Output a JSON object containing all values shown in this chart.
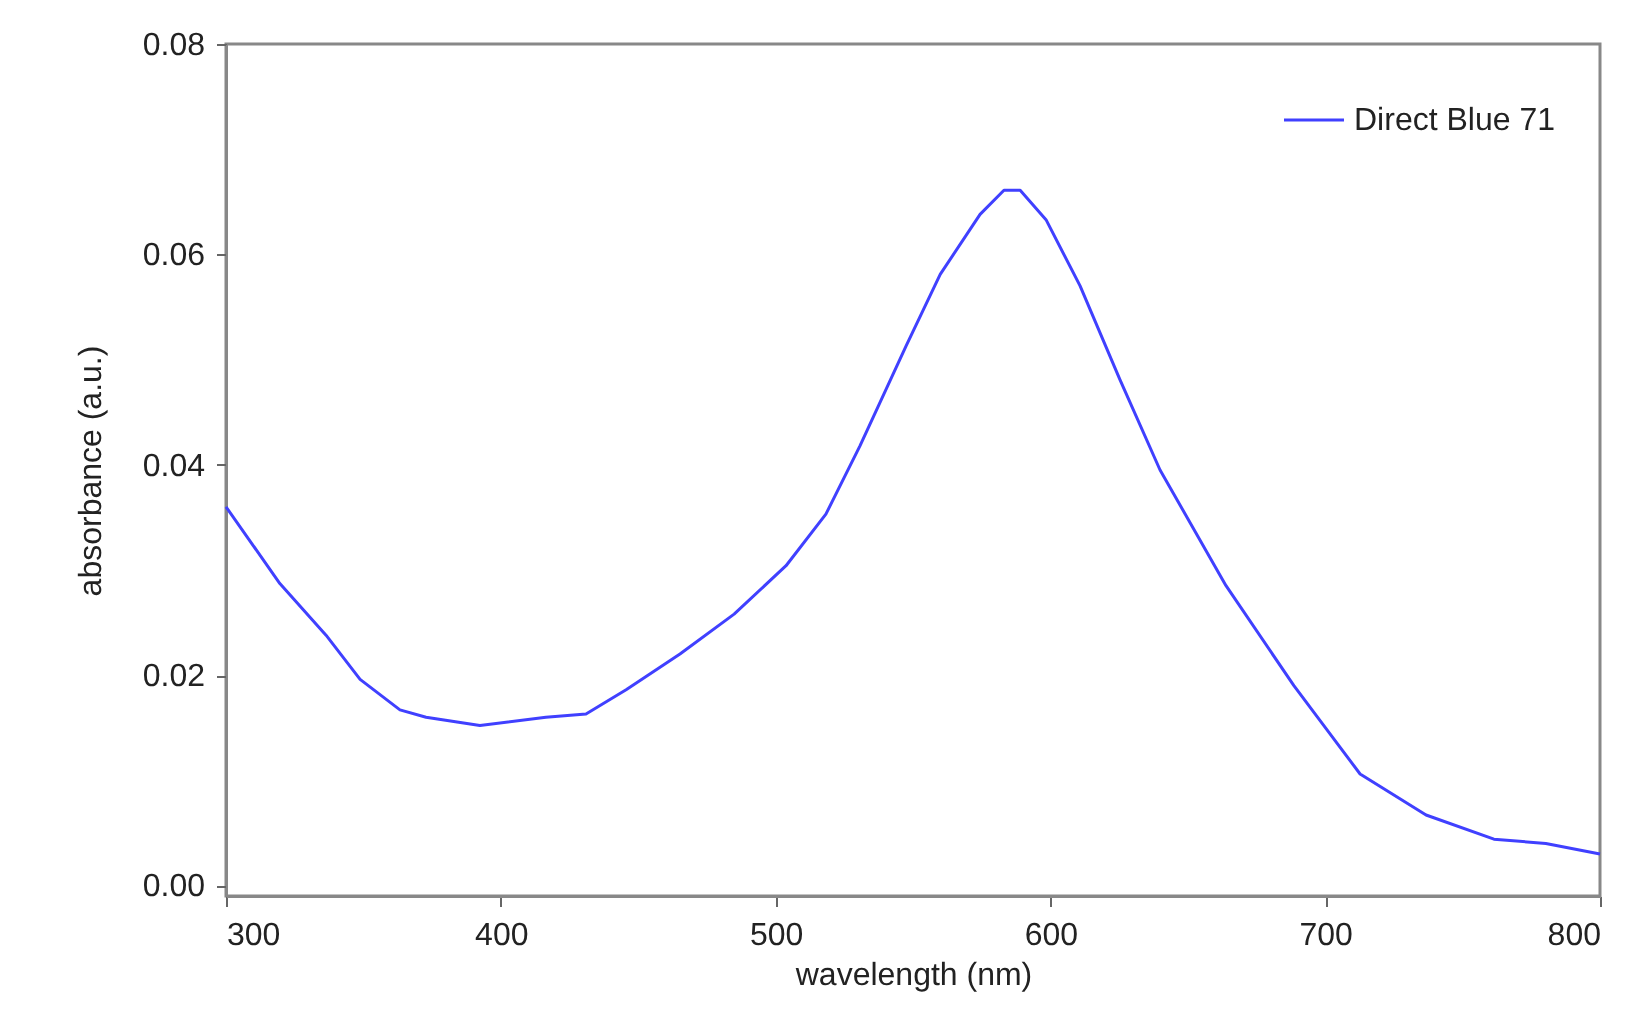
{
  "chart_data": {
    "type": "line",
    "xlabel": "wavelength (nm)",
    "ylabel": "absorbance (a.u.)",
    "x": [
      300,
      319.6,
      336.4,
      348.8,
      363.3,
      372.8,
      392.4,
      416.4,
      431,
      445.6,
      465.2,
      484.9,
      503.8,
      518.3,
      530.7,
      547.5,
      559.9,
      574.4,
      583.1,
      589,
      598.4,
      610.8,
      625.3,
      639.9,
      663.9,
      688.6,
      712.7,
      736.7,
      761.4,
      780.3,
      800
    ],
    "series": [
      {
        "name": "Direct Blue 71",
        "color": "#4040ff",
        "values": [
          0.036,
          0.0287,
          0.0238,
          0.0196,
          0.0167,
          0.016,
          0.0152,
          0.016,
          0.0163,
          0.0186,
          0.022,
          0.0258,
          0.0304,
          0.0353,
          0.0418,
          0.0513,
          0.0581,
          0.0638,
          0.0661,
          0.0661,
          0.0633,
          0.057,
          0.0481,
          0.0395,
          0.0285,
          0.019,
          0.0106,
          0.0067,
          0.0044,
          0.004,
          0.003
        ]
      }
    ],
    "xlim": [
      300,
      800
    ],
    "xticks": [
      300,
      400,
      500,
      600,
      700,
      800
    ],
    "ylim": [
      -0.001,
      0.08
    ],
    "yticks": [
      {
        "value": 0,
        "label": "0.00"
      },
      {
        "value": 0.02,
        "label": "0.02"
      },
      {
        "value": 0.04,
        "label": "0.04"
      },
      {
        "value": 0.06,
        "label": "0.06"
      },
      {
        "value": 0.08,
        "label": "0.08"
      }
    ],
    "legend": "top right",
    "grid": false,
    "marker": "none",
    "line_style": "solid"
  }
}
